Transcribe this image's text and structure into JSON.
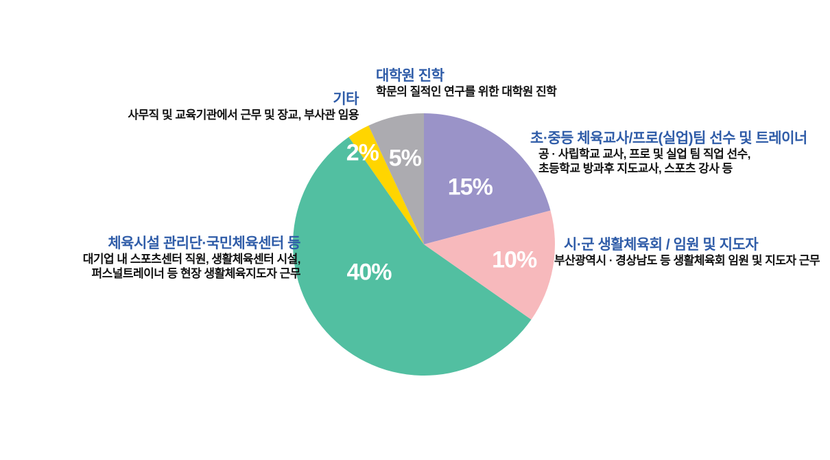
{
  "colors": {
    "title_blue": "#2F5CA8",
    "desc_black": "#111111",
    "percent_white": "#FFFFFF",
    "background": "#FFFFFF"
  },
  "chart_data": {
    "type": "pie",
    "title": "",
    "legend_position": "callouts-around-pie",
    "direction": "clockwise",
    "start_angle_deg": 0,
    "slices": [
      {
        "label": "초·중등 체육교사/프로(실업)팀 선수 및 트레이너",
        "value": 15,
        "pct_label": "15%",
        "color": "#9A93C8",
        "label_angle": 39,
        "label_r": 0.56
      },
      {
        "label": "시·군 생활체육회 / 임원 및 지도자",
        "value": 10,
        "pct_label": "10%",
        "color": "#F7B9BC",
        "label_angle": 100,
        "label_r": 0.7
      },
      {
        "label": "체육시설 관리단·국민체육센터 등",
        "value": 40,
        "pct_label": "40%",
        "color": "#52BFA1",
        "label_angle": 243,
        "label_r": 0.47
      },
      {
        "label": "기타",
        "value": 2,
        "pct_label": "2%",
        "color": "#FFD500",
        "label_angle": 326,
        "label_r": 0.84
      },
      {
        "label": "대학원 진학",
        "value": 5,
        "pct_label": "5%",
        "color": "#ACABB0",
        "label_angle": 347.5,
        "label_r": 0.67
      }
    ]
  },
  "callouts": {
    "grad": {
      "title": "대학원 진학",
      "desc1": "학문의 질적인 연구를 위한 대학원 진학"
    },
    "etc": {
      "title": "기타",
      "desc1": "사무직 및 교육기관에서 근무 및 장교, 부사관 임용"
    },
    "teachers": {
      "title": "초·중등 체육교사/프로(실업)팀 선수 및 트레이너",
      "desc1": "공 · 사립학교 교사, 프로 및 실업 팀 직업 선수,",
      "desc2": "초등학교 방과후 지도교사, 스포츠 강사 등"
    },
    "council": {
      "title": "시·군 생활체육회 / 임원 및 지도자",
      "desc1": "부산광역시 · 경상남도 등 생활체육회 임원 및 지도자 근무"
    },
    "facilities": {
      "title": "체육시설 관리단·국민체육센터 등",
      "desc1": "대기업 내 스포츠센터 직원, 생활체육센터 시설,",
      "desc2": "퍼스널트레이너 등 현장 생활체육지도자 근무"
    }
  }
}
